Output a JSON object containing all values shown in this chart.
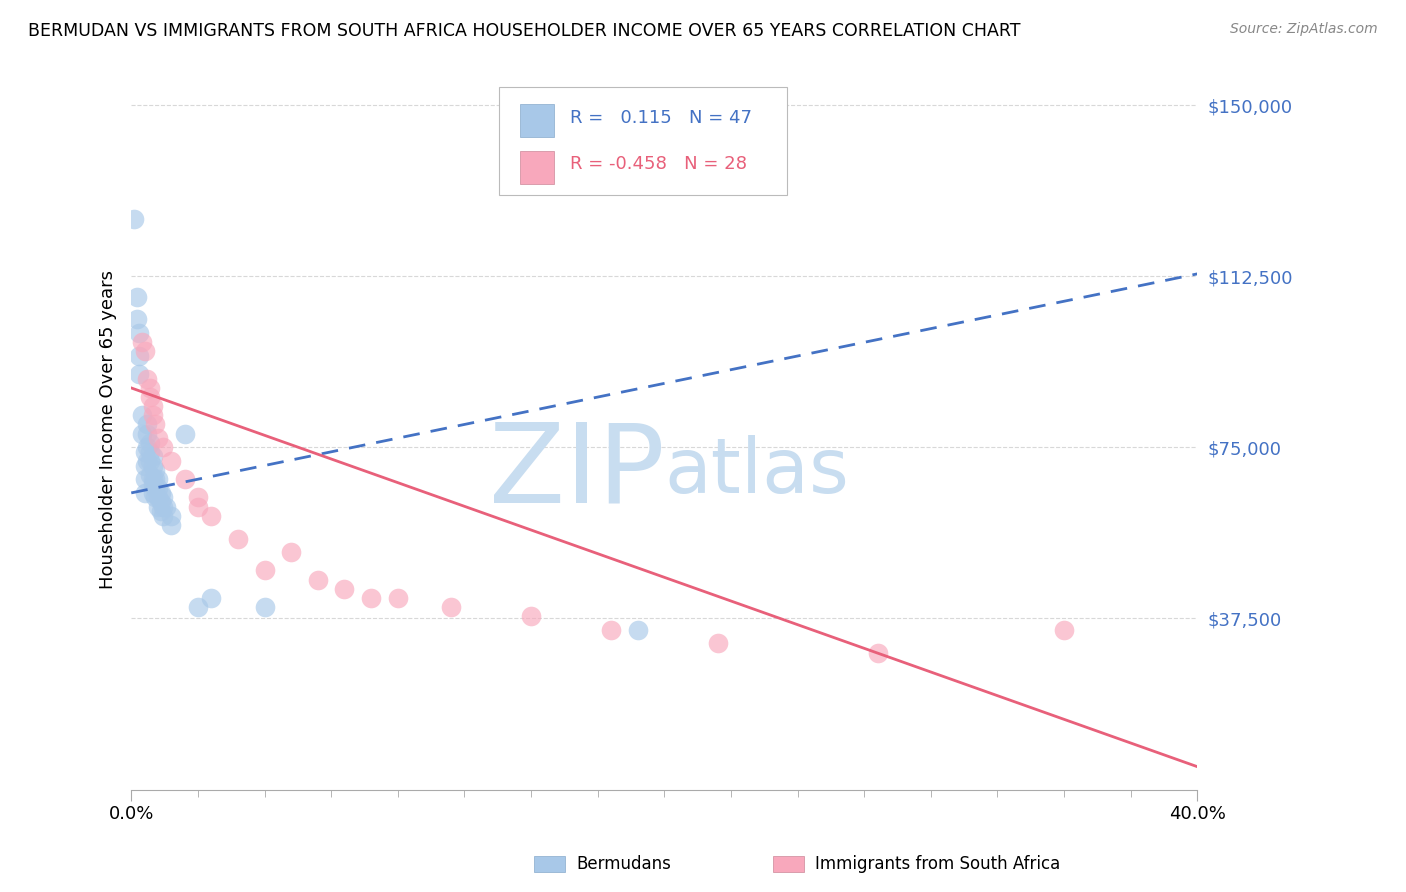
{
  "title": "BERMUDAN VS IMMIGRANTS FROM SOUTH AFRICA HOUSEHOLDER INCOME OVER 65 YEARS CORRELATION CHART",
  "source": "Source: ZipAtlas.com",
  "ylabel": "Householder Income Over 65 years",
  "y_ticks": [
    0,
    37500,
    75000,
    112500,
    150000
  ],
  "y_tick_labels": [
    "",
    "$37,500",
    "$75,000",
    "$112,500",
    "$150,000"
  ],
  "x_range": [
    0.0,
    0.4
  ],
  "y_range": [
    15000,
    158000
  ],
  "blue_color": "#a8c8e8",
  "pink_color": "#f8a8bc",
  "blue_line_color": "#4472c4",
  "pink_line_color": "#e8607a",
  "blue_r_color": "#4472c4",
  "pink_r_color": "#e8607a",
  "watermark_zip": "ZIP",
  "watermark_atlas": "atlas",
  "watermark_color": "#c8ddf0",
  "blue_scatter_x": [
    0.001,
    0.002,
    0.002,
    0.003,
    0.003,
    0.003,
    0.004,
    0.004,
    0.005,
    0.005,
    0.005,
    0.005,
    0.006,
    0.006,
    0.006,
    0.006,
    0.007,
    0.007,
    0.007,
    0.007,
    0.008,
    0.008,
    0.008,
    0.008,
    0.008,
    0.009,
    0.009,
    0.009,
    0.009,
    0.01,
    0.01,
    0.01,
    0.01,
    0.011,
    0.011,
    0.011,
    0.012,
    0.012,
    0.012,
    0.013,
    0.015,
    0.015,
    0.02,
    0.025,
    0.03,
    0.05,
    0.19
  ],
  "blue_scatter_y": [
    125000,
    108000,
    103000,
    100000,
    95000,
    91000,
    82000,
    78000,
    74000,
    71000,
    68000,
    65000,
    80000,
    78000,
    75000,
    72000,
    76000,
    74000,
    72000,
    69000,
    73000,
    71000,
    68000,
    67000,
    65000,
    70000,
    68000,
    66000,
    64000,
    68000,
    66000,
    64000,
    62000,
    65000,
    63000,
    61000,
    64000,
    62000,
    60000,
    62000,
    60000,
    58000,
    78000,
    40000,
    42000,
    40000,
    35000
  ],
  "pink_scatter_x": [
    0.004,
    0.005,
    0.006,
    0.007,
    0.007,
    0.008,
    0.008,
    0.009,
    0.01,
    0.012,
    0.015,
    0.02,
    0.025,
    0.025,
    0.03,
    0.04,
    0.05,
    0.06,
    0.07,
    0.08,
    0.09,
    0.1,
    0.12,
    0.15,
    0.18,
    0.22,
    0.28,
    0.35
  ],
  "pink_scatter_y": [
    98000,
    96000,
    90000,
    88000,
    86000,
    84000,
    82000,
    80000,
    77000,
    75000,
    72000,
    68000,
    64000,
    62000,
    60000,
    55000,
    48000,
    52000,
    46000,
    44000,
    42000,
    42000,
    40000,
    38000,
    35000,
    32000,
    30000,
    35000
  ],
  "blue_line_x": [
    0.0,
    0.4
  ],
  "blue_line_y": [
    65000,
    113000
  ],
  "pink_line_x": [
    0.0,
    0.4
  ],
  "pink_line_y": [
    88000,
    5000
  ],
  "grid_color": "#d8d8d8",
  "background_color": "#ffffff",
  "x_minor_ticks": [
    0.0,
    0.025,
    0.05,
    0.075,
    0.1,
    0.125,
    0.15,
    0.175,
    0.2,
    0.225,
    0.25,
    0.275,
    0.3,
    0.325,
    0.35,
    0.375,
    0.4
  ]
}
